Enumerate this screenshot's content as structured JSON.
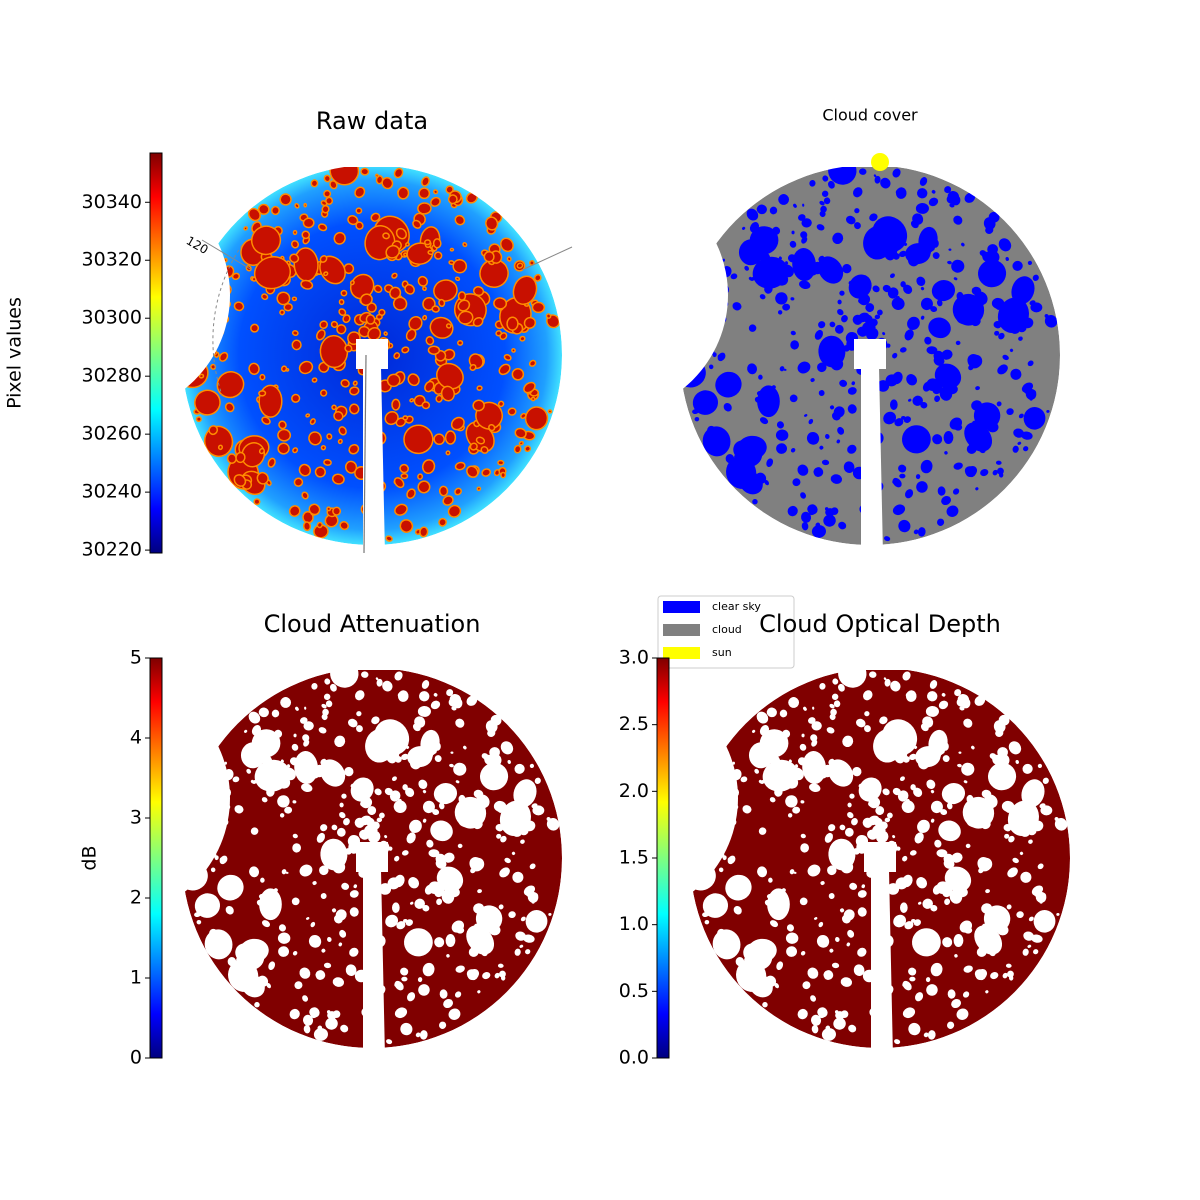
{
  "chart_data": [
    {
      "type": "image",
      "title": "Raw data",
      "colorbar": {
        "label": "Pixel values",
        "lim": [
          30219,
          30357
        ],
        "ticks": [
          30220,
          30240,
          30260,
          30280,
          30300,
          30320,
          30340
        ]
      },
      "annotation": "120"
    },
    {
      "type": "image",
      "title": "Cloud cover",
      "legend": [
        {
          "name": "clear sky",
          "color": "#0000ff"
        },
        {
          "name": "cloud",
          "color": "#808080"
        },
        {
          "name": "sun",
          "color": "#ffff00"
        }
      ]
    },
    {
      "type": "image",
      "title": "Cloud Attenuation",
      "colorbar": {
        "label": "dB",
        "lim": [
          0,
          5
        ],
        "ticks": [
          0,
          1,
          2,
          3,
          4,
          5
        ]
      }
    },
    {
      "type": "image",
      "title": "Cloud Optical Depth",
      "colorbar": {
        "lim": [
          0,
          3
        ],
        "ticks": [
          {
            "value": 0,
            "label": "0.0"
          },
          0.5,
          {
            "value": 1,
            "label": "1.0"
          },
          1.5,
          {
            "value": 2,
            "label": "2.0"
          },
          2.5,
          {
            "value": 3,
            "label": "3.0"
          }
        ]
      }
    }
  ]
}
